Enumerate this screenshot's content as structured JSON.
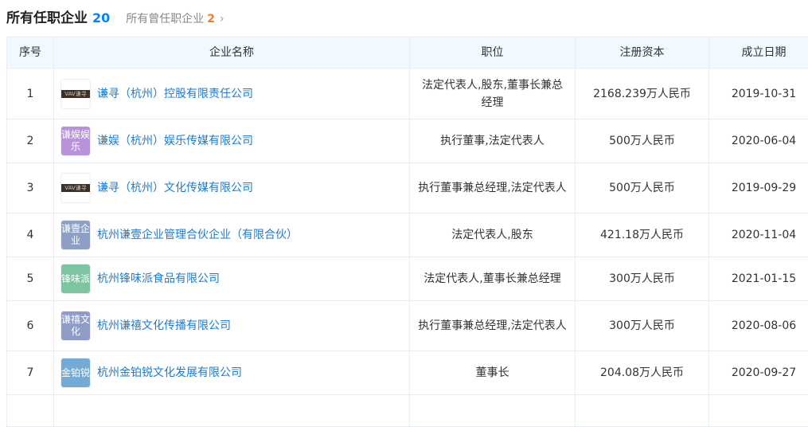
{
  "header": {
    "title": "所有任职企业",
    "count": "20",
    "former_label": "所有曾任职企业",
    "former_count": "2",
    "chevron": "›"
  },
  "columns": [
    "序号",
    "企业名称",
    "职位",
    "注册资本",
    "成立日期"
  ],
  "rows": [
    {
      "no": "1",
      "logo_text": "VAV谦寻",
      "logo_type": "image",
      "logo_color": "#3a302c",
      "name": "谦寻（杭州）控股有限责任公司",
      "position": "法定代表人,股东,董事长兼总经理",
      "capital": "2168.239万人民币",
      "date": "2019-10-31"
    },
    {
      "no": "2",
      "logo_text": "谦娱娱乐",
      "logo_type": "text",
      "logo_color": "#b893d9",
      "name": "谦娱（杭州）娱乐传媒有限公司",
      "position": "执行董事,法定代表人",
      "capital": "500万人民币",
      "date": "2020-06-04"
    },
    {
      "no": "3",
      "logo_text": "VAV谦寻",
      "logo_type": "image",
      "logo_color": "#3a302c",
      "name": "谦寻（杭州）文化传媒有限公司",
      "position": "执行董事兼总经理,法定代表人",
      "capital": "500万人民币",
      "date": "2019-09-29"
    },
    {
      "no": "4",
      "logo_text": "谦壹企业",
      "logo_type": "text",
      "logo_color": "#8e9fc6",
      "name": "杭州谦壹企业管理合伙企业（有限合伙）",
      "position": "法定代表人,股东",
      "capital": "421.18万人民币",
      "date": "2020-11-04"
    },
    {
      "no": "5",
      "logo_text": "锋味派",
      "logo_type": "text",
      "logo_color": "#7cc5a0",
      "name": "杭州锋味派食品有限公司",
      "position": "法定代表人,董事长兼总经理",
      "capital": "300万人民币",
      "date": "2021-01-15"
    },
    {
      "no": "6",
      "logo_text": "谦禧文化",
      "logo_type": "text",
      "logo_color": "#8e9cc6",
      "name": "杭州谦禧文化传播有限公司",
      "position": "执行董事兼总经理,法定代表人",
      "capital": "300万人民币",
      "date": "2020-08-06"
    },
    {
      "no": "7",
      "logo_text": "金铂锐",
      "logo_type": "text",
      "logo_color": "#74aad6",
      "name": "杭州金铂锐文化发展有限公司",
      "position": "董事长",
      "capital": "204.08万人民币",
      "date": "2020-09-27"
    }
  ]
}
